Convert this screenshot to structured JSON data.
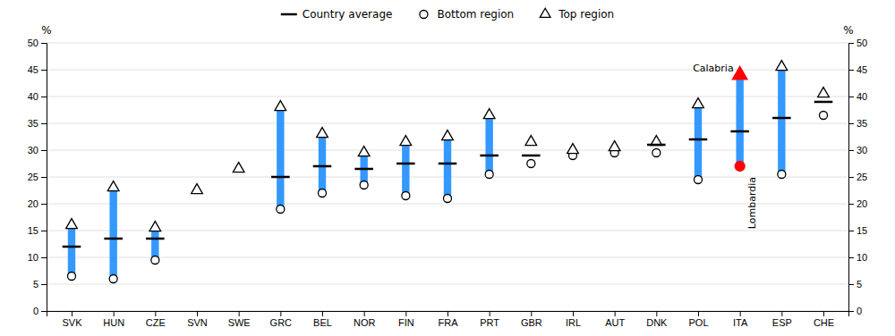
{
  "chart_data": {
    "type": "range",
    "categories": [
      "SVK",
      "HUN",
      "CZE",
      "SVN",
      "SWE",
      "GRC",
      "BEL",
      "NOR",
      "FIN",
      "FRA",
      "PRT",
      "GBR",
      "IRL",
      "AUT",
      "DNK",
      "POL",
      "ITA",
      "ESP",
      "CHE"
    ],
    "series": [
      {
        "type": "bar",
        "color": "#3399FF",
        "low": [
          6.5,
          6.0,
          9.5,
          null,
          null,
          19.0,
          22.0,
          23.5,
          21.5,
          21.0,
          25.5,
          null,
          null,
          null,
          null,
          24.5,
          27.0,
          25.5,
          null
        ],
        "values": [
          16.0,
          23.0,
          15.5,
          null,
          null,
          38.0,
          33.0,
          29.5,
          31.5,
          32.5,
          36.5,
          null,
          null,
          null,
          null,
          38.5,
          44.0,
          45.5,
          null
        ]
      },
      {
        "name": "Country average",
        "type": "dash",
        "color": "black",
        "values": [
          12.0,
          13.5,
          13.5,
          null,
          null,
          25.0,
          27.0,
          26.5,
          27.5,
          27.5,
          29.0,
          29.0,
          null,
          null,
          31.0,
          32.0,
          33.5,
          36.0,
          39.0
        ]
      },
      {
        "name": "Bottom region",
        "type": "scatter",
        "marker": "circle",
        "color": "black",
        "colors": [
          "black",
          "black",
          "black",
          "black",
          "black",
          "black",
          "black",
          "black",
          "black",
          "black",
          "black",
          "black",
          "black",
          "black",
          "black",
          "black",
          "#FF0000",
          "black",
          "black"
        ],
        "values": [
          6.5,
          6.0,
          9.5,
          null,
          null,
          19.0,
          22.0,
          23.5,
          21.5,
          21.0,
          25.5,
          27.5,
          29.0,
          29.5,
          29.5,
          24.5,
          27.0,
          25.5,
          36.5
        ]
      },
      {
        "name": "Top region",
        "type": "scatter",
        "marker": "triangle",
        "color": "black",
        "colors": [
          "black",
          "black",
          "black",
          "black",
          "black",
          "black",
          "black",
          "black",
          "black",
          "black",
          "black",
          "black",
          "black",
          "black",
          "black",
          "black",
          "#FF0000",
          "black",
          "black"
        ],
        "values": [
          16.0,
          23.0,
          15.5,
          22.5,
          26.5,
          38.0,
          33.0,
          29.5,
          31.5,
          32.5,
          36.5,
          31.5,
          30.0,
          30.5,
          31.5,
          38.5,
          44.0,
          45.5,
          40.5
        ]
      }
    ],
    "annotations": [
      {
        "text": "Calabria",
        "x": "ITA",
        "y": 44.0
      },
      {
        "text": "Lombardia",
        "x": "ITA",
        "y": 27.0
      }
    ],
    "y_label": "%",
    "y2_label": "%",
    "ylim": [
      0,
      50
    ],
    "yticks": [
      0,
      5,
      10,
      15,
      20,
      25,
      30,
      35,
      40,
      45,
      50
    ],
    "y2lim": [
      0,
      50
    ],
    "y2ticks": [
      0,
      5,
      10,
      15,
      20,
      25,
      30,
      35,
      40,
      45,
      50
    ],
    "grid": true,
    "legend": "top"
  }
}
